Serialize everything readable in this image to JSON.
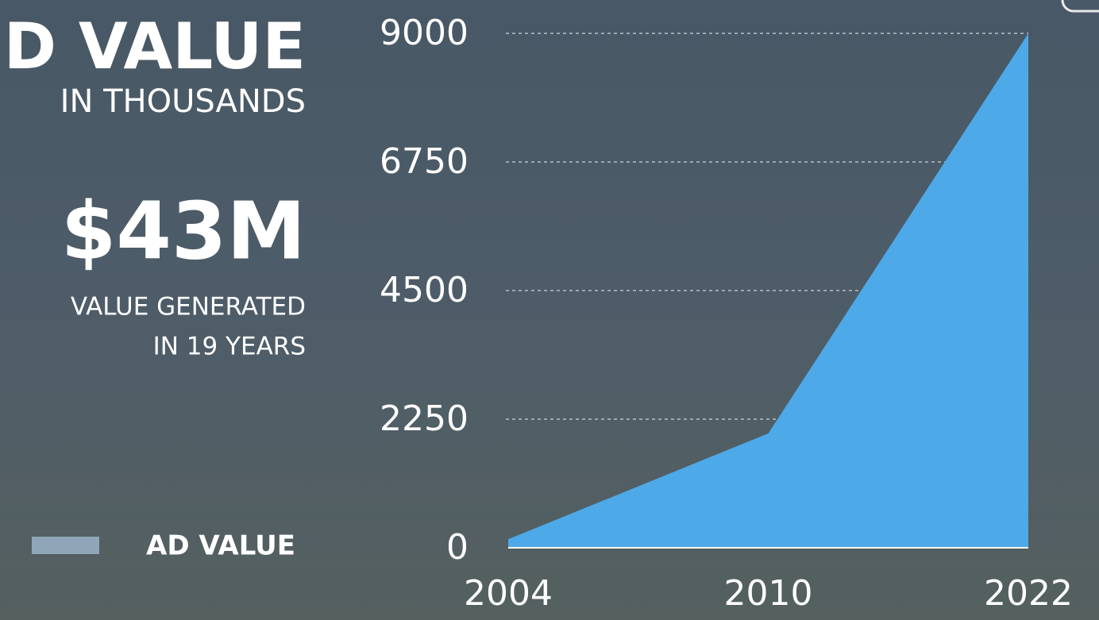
{
  "chart_data": {
    "type": "area",
    "headline": "D VALUE",
    "headline_sub": "IN THOUSANDS",
    "stat": "$43M",
    "stat_caption": [
      "VALUE GENERATED",
      "IN 19 YEARS"
    ],
    "categories": [
      "2004",
      "2010",
      "2022"
    ],
    "series": [
      {
        "name": "AD VALUE",
        "color": "#4da9e8",
        "legend_color": "#8fa6b8",
        "values": [
          150,
          2000,
          9000
        ]
      }
    ],
    "ylim": [
      0,
      9000
    ],
    "yticks": [
      0,
      2250,
      4500,
      6750,
      9000
    ],
    "grid": true
  }
}
